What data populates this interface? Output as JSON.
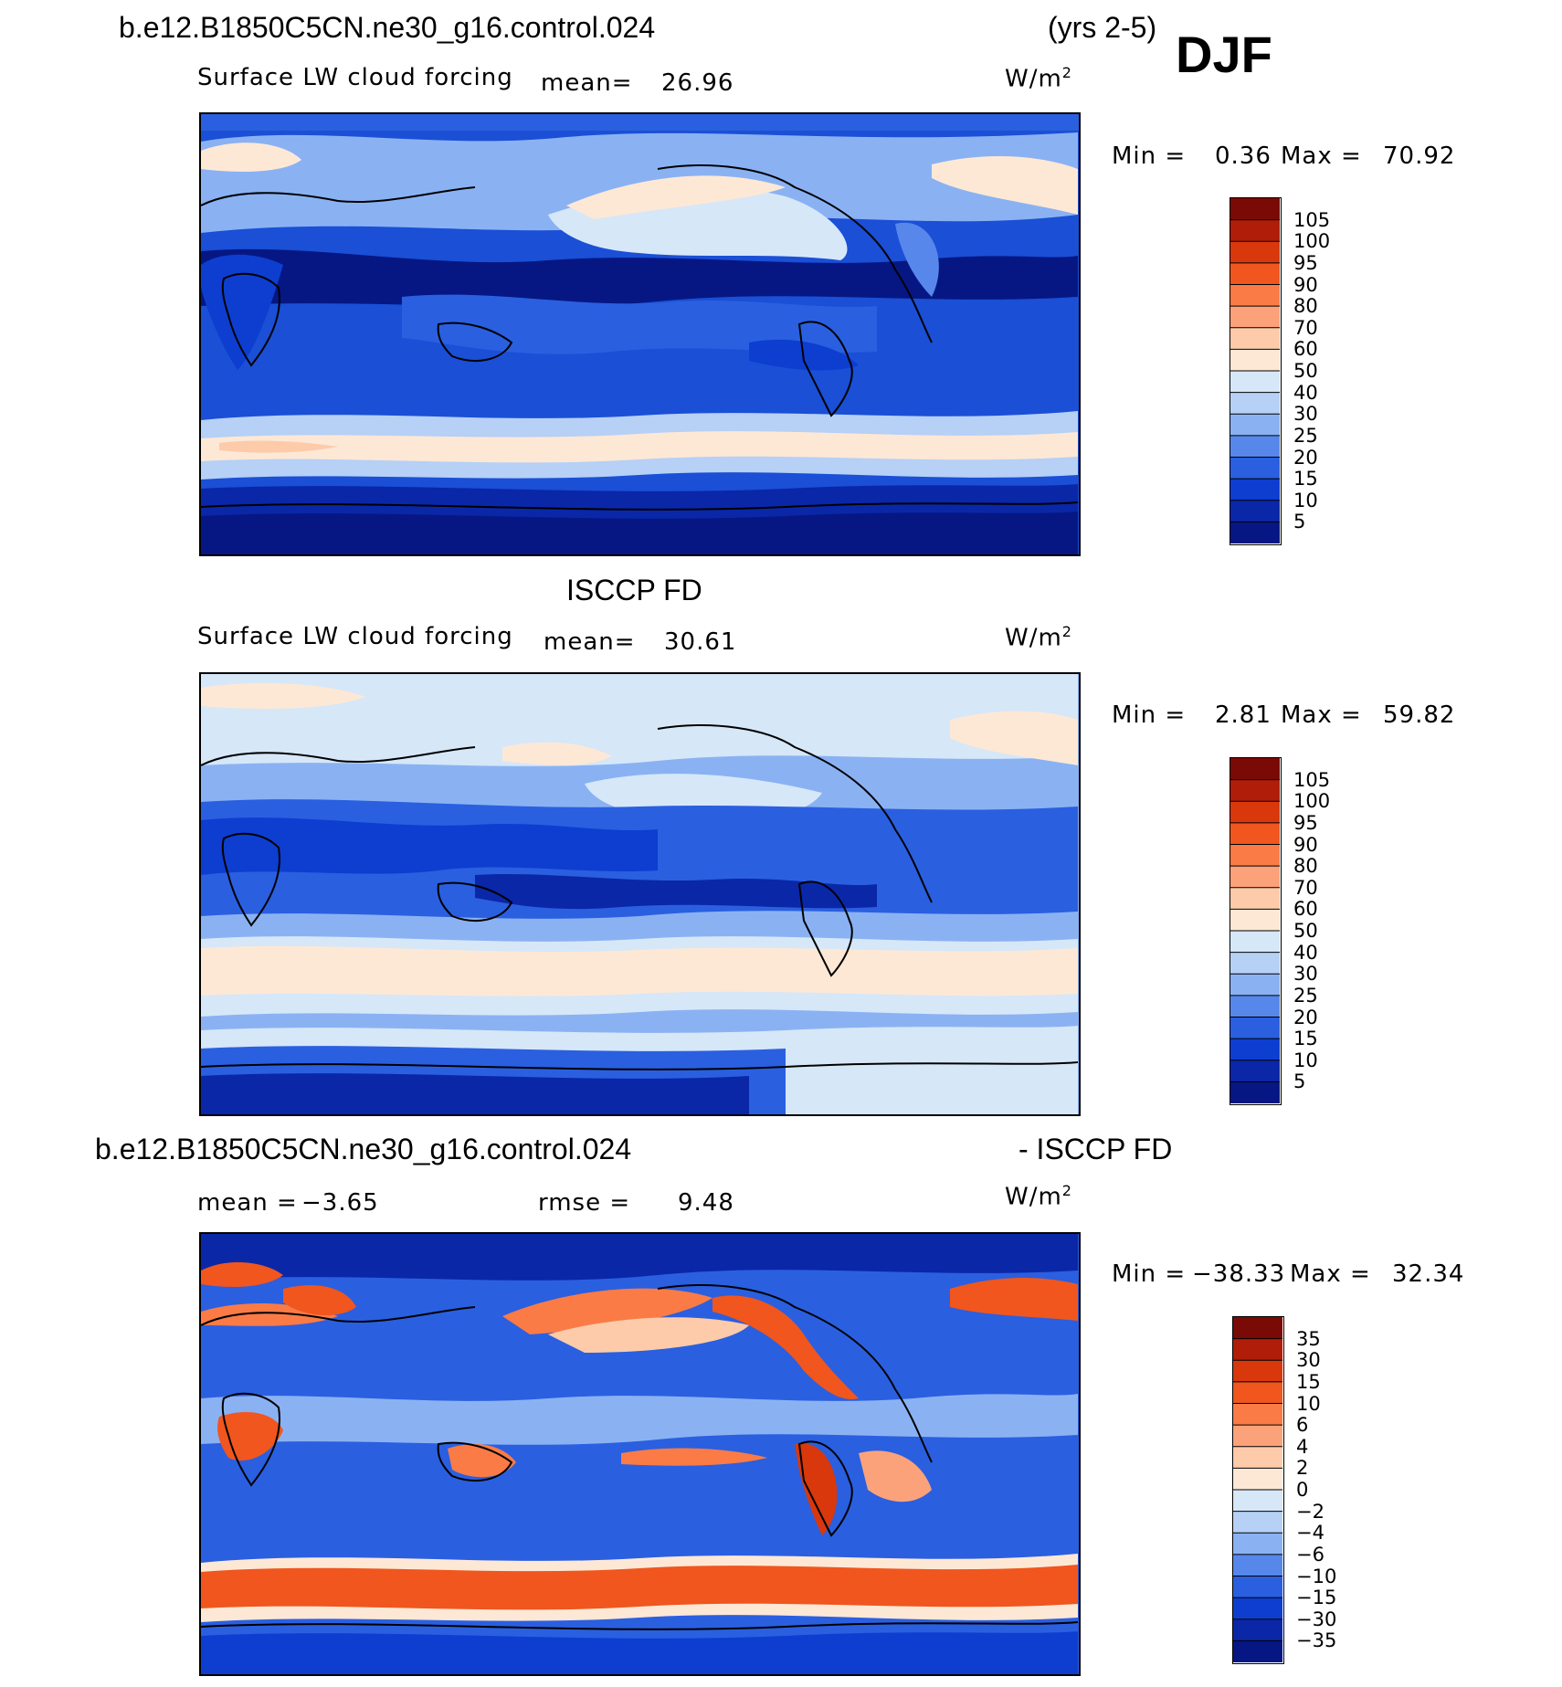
{
  "header": {
    "case_name": "b.e12.B1850C5CN.ne30_g16.control.024",
    "years": "(yrs 2-5)",
    "season": "DJF"
  },
  "panels": [
    {
      "id": "model",
      "title": "",
      "variable": "Surface LW cloud forcing",
      "mean_label": "mean=",
      "mean_value": "26.96",
      "units": "W/m",
      "units_sup": "2",
      "min_label": "Min =",
      "min_value": "0.36",
      "max_label": "Max =",
      "max_value": "70.92",
      "colorbar": {
        "labels": [
          "105",
          "100",
          "95",
          "90",
          "80",
          "70",
          "60",
          "50",
          "40",
          "30",
          "25",
          "20",
          "15",
          "10",
          "5"
        ],
        "colors": [
          "#7a0a05",
          "#b01d08",
          "#d8380c",
          "#f0561e",
          "#fa7b46",
          "#fca27a",
          "#fdcbaa",
          "#fde8d6",
          "#d6e7f8",
          "#b6d0f6",
          "#8ab2f3",
          "#5787eb",
          "#2a5fe0",
          "#0d3ed0",
          "#0a27a8",
          "#061783"
        ]
      }
    },
    {
      "id": "obs",
      "title": "ISCCP FD",
      "variable": "Surface LW cloud forcing",
      "mean_label": "mean=",
      "mean_value": "30.61",
      "units": "W/m",
      "units_sup": "2",
      "min_label": "Min =",
      "min_value": "2.81",
      "max_label": "Max =",
      "max_value": "59.82",
      "colorbar": {
        "labels": [
          "105",
          "100",
          "95",
          "90",
          "80",
          "70",
          "60",
          "50",
          "40",
          "30",
          "25",
          "20",
          "15",
          "10",
          "5"
        ],
        "colors": [
          "#7a0a05",
          "#b01d08",
          "#d8380c",
          "#f0561e",
          "#fa7b46",
          "#fca27a",
          "#fdcbaa",
          "#fde8d6",
          "#d6e7f8",
          "#b6d0f6",
          "#8ab2f3",
          "#5787eb",
          "#2a5fe0",
          "#0d3ed0",
          "#0a27a8",
          "#061783"
        ]
      }
    },
    {
      "id": "diff",
      "title_left": "b.e12.B1850C5CN.ne30_g16.control.024",
      "title_right": "- ISCCP FD",
      "mean_label": "mean =",
      "mean_value": "−3.65",
      "rmse_label": "rmse =",
      "rmse_value": "9.48",
      "units": "W/m",
      "units_sup": "2",
      "min_label": "Min =",
      "min_value": "−38.33",
      "max_label": "Max =",
      "max_value": "32.34",
      "colorbar": {
        "labels": [
          "35",
          "30",
          "15",
          "10",
          "6",
          "4",
          "2",
          "0",
          "−2",
          "−4",
          "−6",
          "−10",
          "−15",
          "−30",
          "−35"
        ],
        "colors": [
          "#7a0a05",
          "#b01d08",
          "#d8380c",
          "#f0561e",
          "#fa7b46",
          "#fca27a",
          "#fdcbaa",
          "#fde8d6",
          "#d6e7f8",
          "#b6d0f6",
          "#8ab2f3",
          "#5787eb",
          "#2a5fe0",
          "#0d3ed0",
          "#0a27a8",
          "#061783"
        ]
      }
    }
  ]
}
